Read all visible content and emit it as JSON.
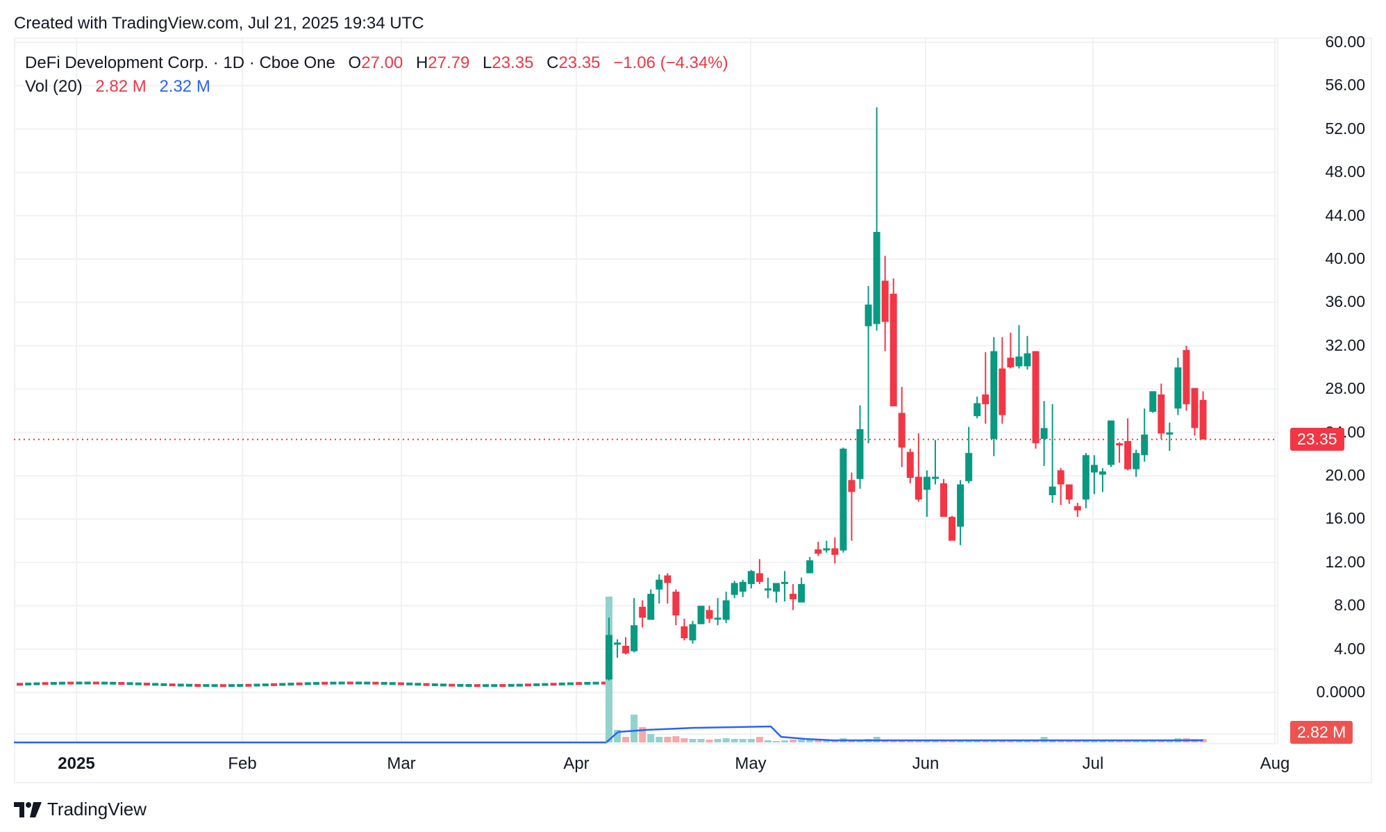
{
  "header": {
    "created_text": "Created with TradingView.com, Jul 21, 2025 19:34 UTC"
  },
  "legend": {
    "symbol": "DeFi Development Corp. · 1D · Cboe One",
    "open_label": "O",
    "open": "27.00",
    "high_label": "H",
    "high": "27.79",
    "low_label": "L",
    "low": "23.35",
    "close_label": "C",
    "close": "23.35",
    "change": "−1.06 (−4.34%)",
    "vol_label": "Vol (20)",
    "vol_value": "2.82 M",
    "vol_ma": "2.32 M"
  },
  "price_tag": {
    "value": "23.35",
    "color": "#f23645"
  },
  "volume_tag": {
    "value": "2.82 M",
    "color": "#ef5350"
  },
  "footer": {
    "brand": "TradingView"
  },
  "colors": {
    "up": "#089981",
    "down": "#f23645",
    "vol_up": "#92d2cc",
    "vol_down": "#f7a9a7",
    "vol_ma": "#2962ff",
    "grid": "#f0f1f3"
  },
  "chart_data": {
    "type": "candlestick",
    "title": "DeFi Development Corp. · 1D · Cboe One",
    "xlabel": "",
    "ylabel": "Price",
    "ylim": [
      0,
      60
    ],
    "y_ticks": [
      "60.00",
      "56.00",
      "52.00",
      "48.00",
      "44.00",
      "40.00",
      "36.00",
      "32.00",
      "28.00",
      "24.00",
      "20.00",
      "16.00",
      "12.00",
      "8.00",
      "4.00",
      "0.0000"
    ],
    "x_ticks": [
      "2025",
      "Feb",
      "Mar",
      "Apr",
      "May",
      "Jun",
      "Jul",
      "Aug"
    ],
    "grid": true,
    "last_price": 23.35,
    "pre_april_price_range": [
      0.6,
      0.9
    ],
    "candles": [
      {
        "d": "Apr 7",
        "o": 1.2,
        "h": 6.9,
        "l": 1.1,
        "c": 5.3
      },
      {
        "d": "Apr 8",
        "o": 4.5,
        "h": 4.9,
        "l": 3.2,
        "c": 4.6
      },
      {
        "d": "Apr 9",
        "o": 4.3,
        "h": 5.1,
        "l": 3.5,
        "c": 3.6
      },
      {
        "d": "Apr 10",
        "o": 3.8,
        "h": 8.7,
        "l": 3.7,
        "c": 6.2
      },
      {
        "d": "Apr 11",
        "o": 7.9,
        "h": 8.5,
        "l": 6.0,
        "c": 6.9
      },
      {
        "d": "Apr 14",
        "o": 6.7,
        "h": 9.5,
        "l": 6.7,
        "c": 9.1
      },
      {
        "d": "Apr 15",
        "o": 9.5,
        "h": 10.9,
        "l": 8.2,
        "c": 10.4
      },
      {
        "d": "Apr 16",
        "o": 10.8,
        "h": 11.0,
        "l": 8.2,
        "c": 10.1
      },
      {
        "d": "Apr 17",
        "o": 9.3,
        "h": 9.5,
        "l": 6.2,
        "c": 7.1
      },
      {
        "d": "Apr 21",
        "o": 6.1,
        "h": 6.8,
        "l": 4.8,
        "c": 5.0
      },
      {
        "d": "Apr 22",
        "o": 4.8,
        "h": 6.6,
        "l": 4.5,
        "c": 6.3
      },
      {
        "d": "Apr 23",
        "o": 6.3,
        "h": 7.8,
        "l": 6.3,
        "c": 8.0
      },
      {
        "d": "Apr 24",
        "o": 7.6,
        "h": 8.0,
        "l": 6.4,
        "c": 6.8
      },
      {
        "d": "Apr 25",
        "o": 6.9,
        "h": 8.7,
        "l": 6.2,
        "c": 6.9
      },
      {
        "d": "Apr 28",
        "o": 6.7,
        "h": 9.3,
        "l": 6.4,
        "c": 8.5
      },
      {
        "d": "Apr 29",
        "o": 9.0,
        "h": 10.3,
        "l": 8.7,
        "c": 10.1
      },
      {
        "d": "Apr 30",
        "o": 9.3,
        "h": 10.4,
        "l": 8.8,
        "c": 10.2
      },
      {
        "d": "May 1",
        "o": 10.0,
        "h": 11.3,
        "l": 9.6,
        "c": 11.2
      },
      {
        "d": "May 2",
        "o": 11.0,
        "h": 12.3,
        "l": 10.0,
        "c": 10.2
      },
      {
        "d": "May 5",
        "o": 9.6,
        "h": 10.6,
        "l": 8.7,
        "c": 9.6
      },
      {
        "d": "May 6",
        "o": 9.3,
        "h": 10.0,
        "l": 8.3,
        "c": 10.1
      },
      {
        "d": "May 7",
        "o": 10.2,
        "h": 11.2,
        "l": 8.4,
        "c": 10.2
      },
      {
        "d": "May 8",
        "o": 9.1,
        "h": 10.0,
        "l": 7.6,
        "c": 8.6
      },
      {
        "d": "May 9",
        "o": 8.3,
        "h": 10.6,
        "l": 8.3,
        "c": 10.0
      },
      {
        "d": "May 12",
        "o": 11.0,
        "h": 12.5,
        "l": 11.0,
        "c": 12.2
      },
      {
        "d": "May 13",
        "o": 13.2,
        "h": 13.9,
        "l": 12.6,
        "c": 12.8
      },
      {
        "d": "May 14",
        "o": 13.2,
        "h": 14.0,
        "l": 12.9,
        "c": 13.3
      },
      {
        "d": "May 15",
        "o": 13.3,
        "h": 14.3,
        "l": 11.9,
        "c": 12.7
      },
      {
        "d": "May 16",
        "o": 13.1,
        "h": 22.6,
        "l": 12.9,
        "c": 22.5
      },
      {
        "d": "May 19",
        "o": 19.6,
        "h": 20.3,
        "l": 14.0,
        "c": 18.5
      },
      {
        "d": "May 20",
        "o": 19.7,
        "h": 26.5,
        "l": 18.8,
        "c": 24.3
      },
      {
        "d": "May 21",
        "o": 33.8,
        "h": 37.5,
        "l": 23.0,
        "c": 35.8
      },
      {
        "d": "May 22",
        "o": 34.0,
        "h": 54.0,
        "l": 33.4,
        "c": 42.5
      },
      {
        "d": "May 23",
        "o": 38.0,
        "h": 40.3,
        "l": 31.5,
        "c": 34.2
      },
      {
        "d": "May 27",
        "o": 36.8,
        "h": 38.2,
        "l": 26.5,
        "c": 26.4
      },
      {
        "d": "May 28",
        "o": 25.8,
        "h": 28.2,
        "l": 20.8,
        "c": 22.6
      },
      {
        "d": "May 29",
        "o": 22.2,
        "h": 22.5,
        "l": 19.3,
        "c": 19.8
      },
      {
        "d": "May 30",
        "o": 19.9,
        "h": 23.9,
        "l": 17.6,
        "c": 17.8
      },
      {
        "d": "Jun 2",
        "o": 18.7,
        "h": 20.5,
        "l": 16.2,
        "c": 19.9
      },
      {
        "d": "Jun 3",
        "o": 19.8,
        "h": 23.3,
        "l": 19.2,
        "c": 19.9
      },
      {
        "d": "Jun 4",
        "o": 19.3,
        "h": 19.7,
        "l": 17.1,
        "c": 16.2
      },
      {
        "d": "Jun 5",
        "o": 16.2,
        "h": 16.3,
        "l": 14.1,
        "c": 14.0
      },
      {
        "d": "Jun 6",
        "o": 15.3,
        "h": 19.6,
        "l": 13.6,
        "c": 19.2
      },
      {
        "d": "Jun 9",
        "o": 19.5,
        "h": 24.5,
        "l": 19.3,
        "c": 22.1
      },
      {
        "d": "Jun 10",
        "o": 25.5,
        "h": 27.3,
        "l": 25.3,
        "c": 26.7
      },
      {
        "d": "Jun 11",
        "o": 27.5,
        "h": 31.4,
        "l": 24.8,
        "c": 26.6
      },
      {
        "d": "Jun 12",
        "o": 23.4,
        "h": 32.8,
        "l": 21.8,
        "c": 31.5
      },
      {
        "d": "Jun 13",
        "o": 29.9,
        "h": 32.8,
        "l": 24.8,
        "c": 25.6
      },
      {
        "d": "Jun 16",
        "o": 30.9,
        "h": 33.2,
        "l": 29.9,
        "c": 30.0
      },
      {
        "d": "Jun 17",
        "o": 30.1,
        "h": 33.9,
        "l": 29.9,
        "c": 31.0
      },
      {
        "d": "Jun 18",
        "o": 30.1,
        "h": 32.9,
        "l": 29.8,
        "c": 31.3
      },
      {
        "d": "Jun 20",
        "o": 31.5,
        "h": 31.5,
        "l": 22.5,
        "c": 23.0
      },
      {
        "d": "Jun 23",
        "o": 23.4,
        "h": 26.9,
        "l": 20.9,
        "c": 24.4
      },
      {
        "d": "Jun 24",
        "o": 18.2,
        "h": 26.6,
        "l": 17.5,
        "c": 19.0
      },
      {
        "d": "Jun 25",
        "o": 20.5,
        "h": 20.7,
        "l": 17.3,
        "c": 19.2
      },
      {
        "d": "Jun 26",
        "o": 19.2,
        "h": 18.8,
        "l": 17.4,
        "c": 17.8
      },
      {
        "d": "Jun 27",
        "o": 17.2,
        "h": 17.5,
        "l": 16.2,
        "c": 16.8
      },
      {
        "d": "Jun 30",
        "o": 17.8,
        "h": 22.1,
        "l": 17.0,
        "c": 21.9
      },
      {
        "d": "Jul 1",
        "o": 20.3,
        "h": 21.9,
        "l": 18.3,
        "c": 21.0
      },
      {
        "d": "Jul 2",
        "o": 20.1,
        "h": 20.7,
        "l": 18.5,
        "c": 20.4
      },
      {
        "d": "Jul 3",
        "o": 21.0,
        "h": 24.3,
        "l": 20.8,
        "c": 25.1
      },
      {
        "d": "Jul 7",
        "o": 23.0,
        "h": 23.1,
        "l": 21.2,
        "c": 22.8
      },
      {
        "d": "Jul 8",
        "o": 23.2,
        "h": 25.3,
        "l": 20.5,
        "c": 20.6
      },
      {
        "d": "Jul 9",
        "o": 20.6,
        "h": 22.4,
        "l": 19.9,
        "c": 22.1
      },
      {
        "d": "Jul 10",
        "o": 21.9,
        "h": 26.2,
        "l": 21.3,
        "c": 23.8
      },
      {
        "d": "Jul 11",
        "o": 25.9,
        "h": 27.3,
        "l": 25.8,
        "c": 27.8
      },
      {
        "d": "Jul 14",
        "o": 27.5,
        "h": 28.5,
        "l": 23.4,
        "c": 23.9
      },
      {
        "d": "Jul 15",
        "o": 23.8,
        "h": 24.9,
        "l": 22.3,
        "c": 24.0
      },
      {
        "d": "Jul 16",
        "o": 26.2,
        "h": 30.9,
        "l": 25.6,
        "c": 30.0
      },
      {
        "d": "Jul 17",
        "o": 31.6,
        "h": 32.0,
        "l": 26.0,
        "c": 26.6
      },
      {
        "d": "Jul 18",
        "o": 28.1,
        "h": 27.6,
        "l": 23.7,
        "c": 24.4
      },
      {
        "d": "Jul 21",
        "o": 27.0,
        "h": 27.79,
        "l": 23.35,
        "c": 23.35
      }
    ]
  }
}
